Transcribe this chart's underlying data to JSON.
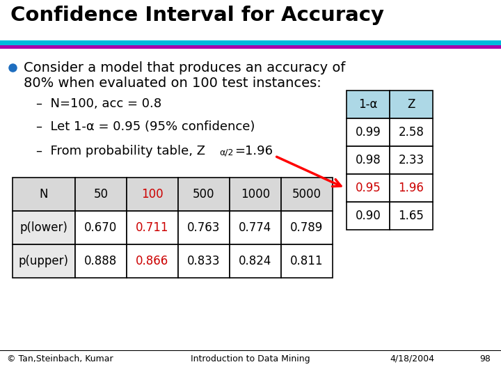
{
  "title": "Confidence Interval for Accuracy",
  "title_fontsize": 21,
  "title_fontweight": "bold",
  "bg_color": "#ffffff",
  "stripe1_color": "#00BBDD",
  "stripe2_color": "#AA00AA",
  "bullet_text_line1": "Consider a model that produces an accuracy of",
  "bullet_text_line2": "80% when evaluated on 100 test instances:",
  "sub_bullet1": "N=100, acc = 0.8",
  "sub_bullet2": "Let 1-α = 0.95 (95% confidence)",
  "sub_bullet3_prefix": "From probability table, Z",
  "sub_bullet3_sub": "α/2",
  "sub_bullet3_suffix": "=1.96",
  "main_table_headers": [
    "N",
    "50",
    "100",
    "500",
    "1000",
    "5000"
  ],
  "main_table_rows": [
    [
      "p(lower)",
      "0.670",
      "0.711",
      "0.763",
      "0.774",
      "0.789"
    ],
    [
      "p(upper)",
      "0.888",
      "0.866",
      "0.833",
      "0.824",
      "0.811"
    ]
  ],
  "main_table_highlight_col": 2,
  "ref_table_headers": [
    "1-α",
    "Z"
  ],
  "ref_table_rows": [
    [
      "0.99",
      "2.58"
    ],
    [
      "0.98",
      "2.33"
    ],
    [
      "0.95",
      "1.96"
    ],
    [
      "0.90",
      "1.65"
    ]
  ],
  "ref_table_highlight_row": 2,
  "highlight_color": "#CC0000",
  "ref_header_bg": "#ADD8E6",
  "main_table_header_bg": "#D8D8D8",
  "main_table_label_bg": "#E8E8E8",
  "footer_left": "© Tan,Steinbach, Kumar",
  "footer_center": "Introduction to Data Mining",
  "footer_right": "4/18/2004",
  "footer_page": "98",
  "bullet_color": "#1E6EBF",
  "text_color": "#000000"
}
